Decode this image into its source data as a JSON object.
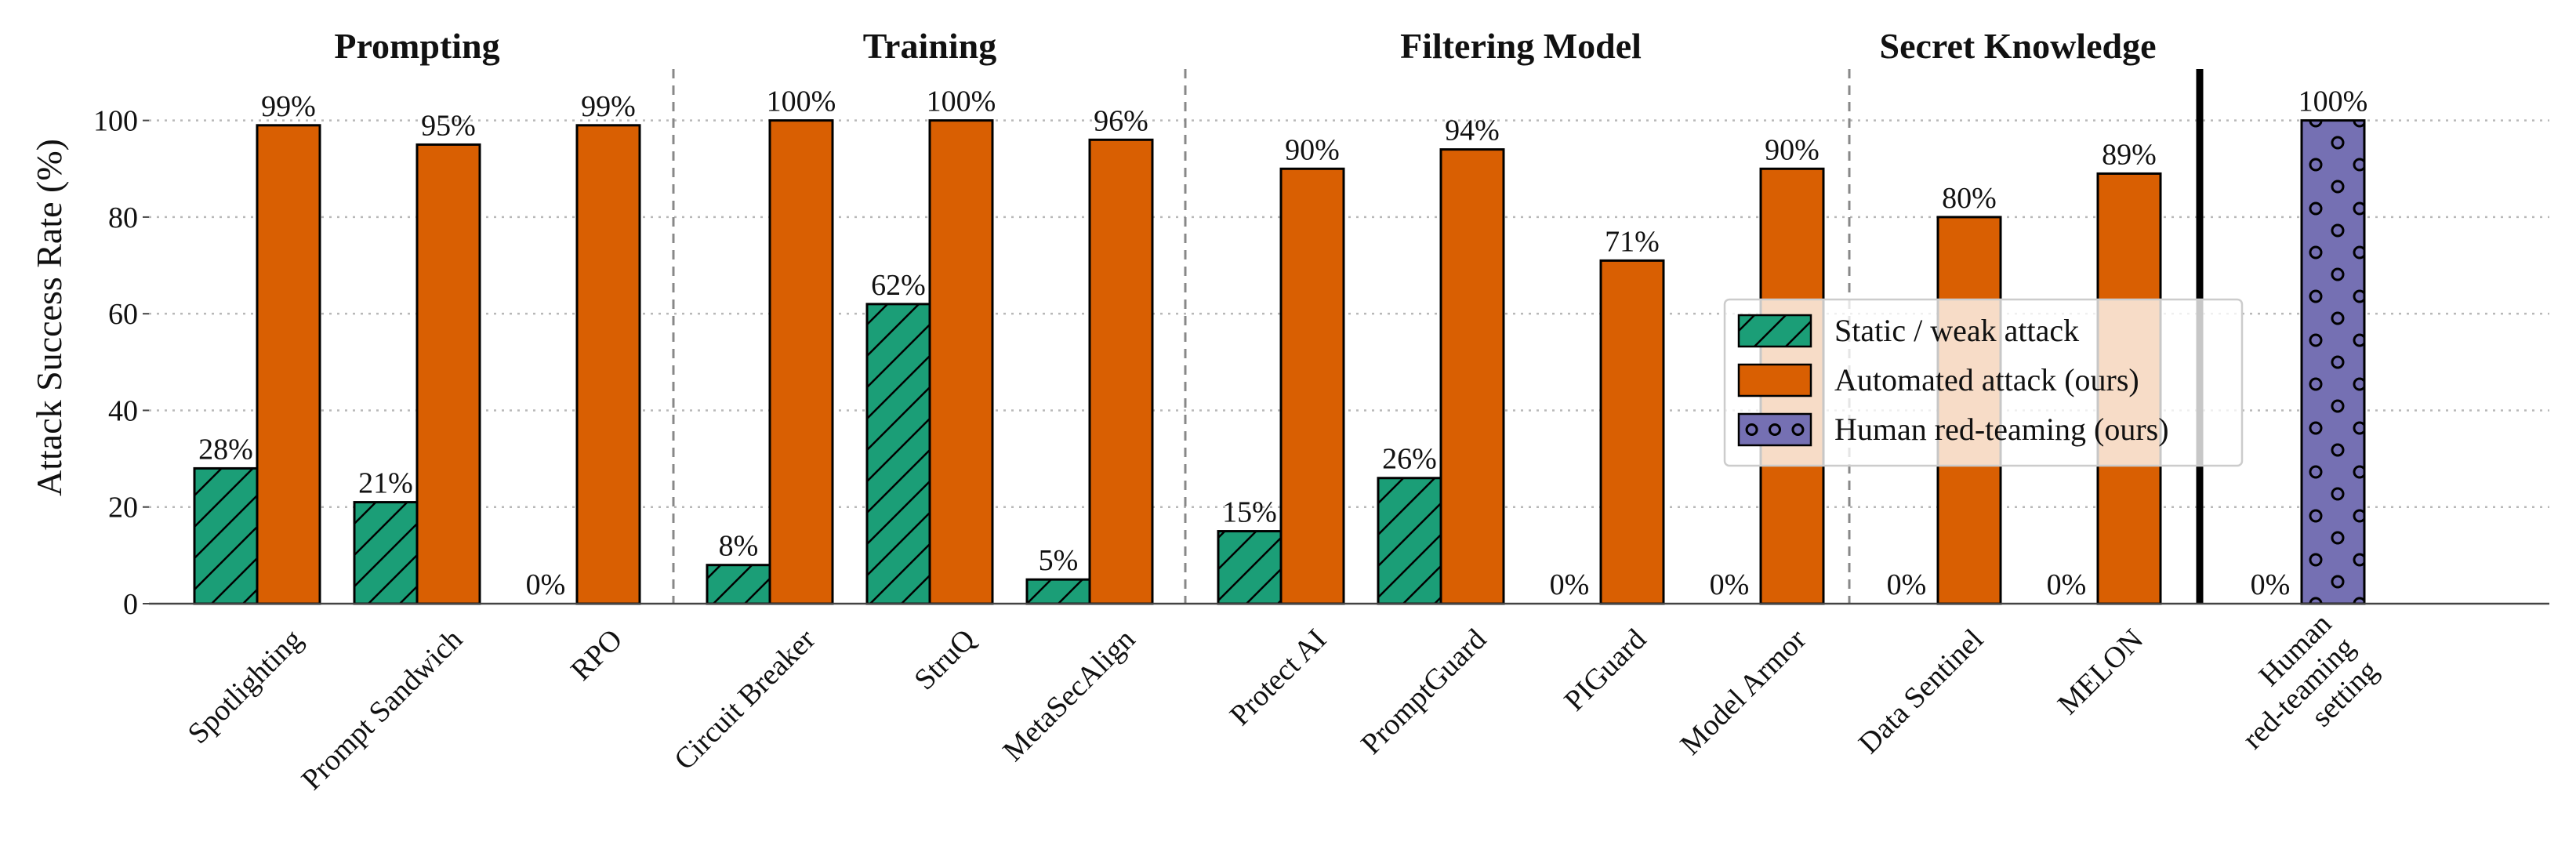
{
  "chart_data": {
    "type": "bar",
    "ylabel": "Attack Success Rate (%)",
    "ylim": [
      0,
      110
    ],
    "yticks": [
      "0",
      "20",
      "40",
      "60",
      "80",
      "100"
    ],
    "grid": "horizontal dotted",
    "legend_placement": "center-right",
    "colors": {
      "static": "#1b9e77",
      "automated": "#d95f02",
      "human": "#7570b3"
    },
    "series": [
      {
        "name": "Static / weak attack",
        "key": "static"
      },
      {
        "name": "Automated attack (ours)",
        "key": "automated"
      },
      {
        "name": "Human red-teaming (ours)",
        "key": "human"
      }
    ],
    "groups": [
      {
        "title": "Prompting",
        "categories": [
          {
            "name": "Spotlighting",
            "static": 28,
            "automated": 99
          },
          {
            "name": "Prompt Sandwich",
            "static": 21,
            "automated": 95
          },
          {
            "name": "RPO",
            "static": 0,
            "automated": 99
          }
        ]
      },
      {
        "title": "Training",
        "categories": [
          {
            "name": "Circuit Breaker",
            "static": 8,
            "automated": 100
          },
          {
            "name": "StruQ",
            "static": 62,
            "automated": 100
          },
          {
            "name": "MetaSecAlign",
            "static": 5,
            "automated": 96
          }
        ]
      },
      {
        "title": "Filtering Model",
        "categories": [
          {
            "name": "Protect AI",
            "static": 15,
            "automated": 90
          },
          {
            "name": "PromptGuard",
            "static": 26,
            "automated": 94
          },
          {
            "name": "PIGuard",
            "static": 0,
            "automated": 71
          },
          {
            "name": "Model Armor",
            "static": 0,
            "automated": 90
          }
        ]
      },
      {
        "title": "Secret Knowledge",
        "categories": [
          {
            "name": "Data Sentinel",
            "static": 0,
            "automated": 80
          },
          {
            "name": "MELON",
            "static": 0,
            "automated": 89
          }
        ]
      },
      {
        "title": "",
        "categories": [
          {
            "name": "Human red-teaming setting",
            "lines": [
              "Human",
              "red-teaming",
              "setting"
            ],
            "static": 0,
            "human": 100
          }
        ]
      }
    ]
  }
}
